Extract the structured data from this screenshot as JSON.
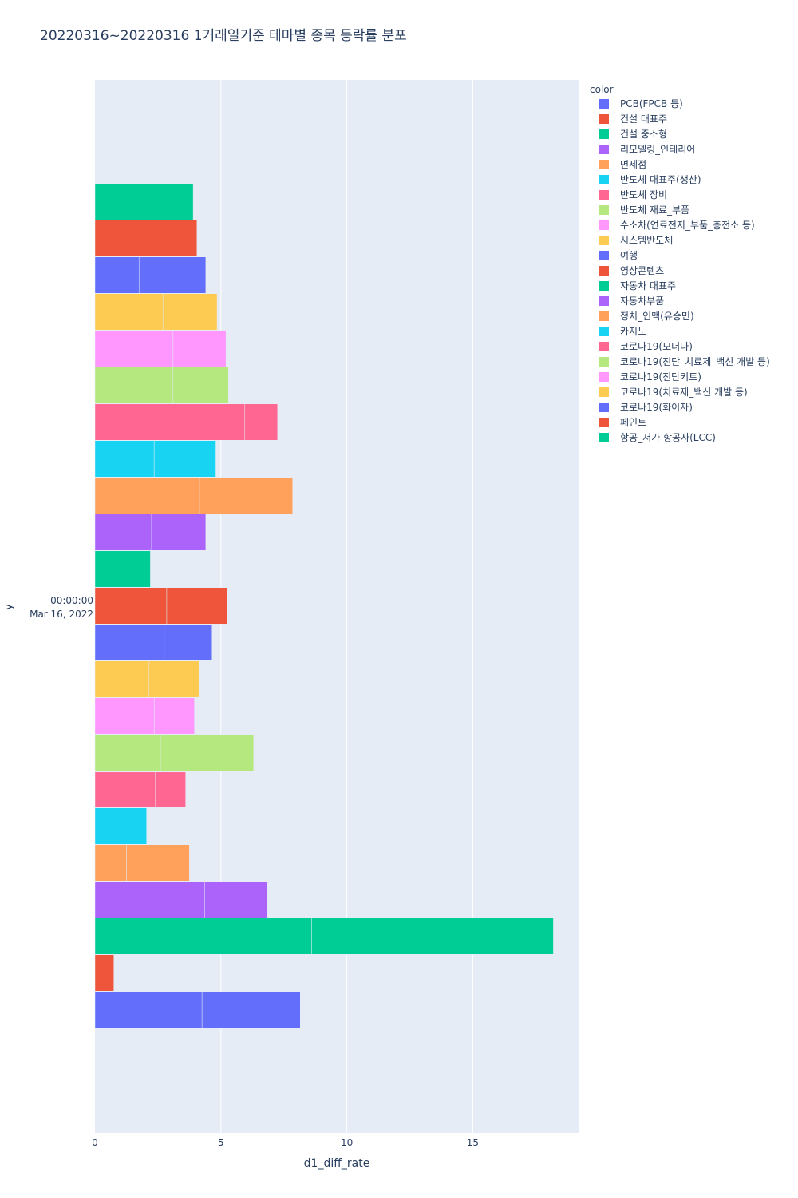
{
  "chart_data": {
    "type": "bar",
    "orientation": "horizontal",
    "barmode": "relative",
    "title": "20220316~20220316 1거래일기준 테마별 종목 등락률 분포",
    "xlabel": "d1_diff_rate",
    "ylabel": "y",
    "y_tick_label_time": "00:00:00",
    "y_tick_label_date": "Mar 16, 2022",
    "xlim": [
      0,
      19.2
    ],
    "x_ticks": [
      0,
      5,
      10,
      15
    ],
    "x_tick_labels": [
      "0",
      "5",
      "10",
      "15"
    ],
    "legend_title": "color",
    "legend_position": "right",
    "grid": true,
    "series": [
      {
        "name": "PCB(FPCB 등)",
        "color": "#636efa",
        "segments": [
          4.25,
          3.9
        ]
      },
      {
        "name": "건설 대표주",
        "color": "#EF553B",
        "segments": [
          0.75
        ]
      },
      {
        "name": "건설 중소형",
        "color": "#00cc96",
        "segments": [
          8.6,
          9.6
        ]
      },
      {
        "name": "리모델링_인테리어",
        "color": "#ab63fa",
        "segments": [
          4.35,
          2.5
        ]
      },
      {
        "name": "면세점",
        "color": "#FFA15A",
        "segments": [
          1.25,
          2.5
        ]
      },
      {
        "name": "반도체 대표주(생산)",
        "color": "#19d3f3",
        "segments": [
          2.05
        ]
      },
      {
        "name": "반도체 장비",
        "color": "#FF6692",
        "segments": [
          2.4,
          1.2
        ]
      },
      {
        "name": "반도체 재료_부품",
        "color": "#B6E880",
        "segments": [
          2.6,
          3.7
        ]
      },
      {
        "name": "수소차(연료전지_부품_충전소 등)",
        "color": "#FF97FF",
        "segments": [
          2.35,
          1.6
        ]
      },
      {
        "name": "시스템반도체",
        "color": "#FECB52",
        "segments": [
          2.15,
          2.0
        ]
      },
      {
        "name": "여행",
        "color": "#636efa",
        "segments": [
          2.75,
          1.9
        ]
      },
      {
        "name": "영상콘텐츠",
        "color": "#EF553B",
        "segments": [
          2.85,
          2.4
        ]
      },
      {
        "name": "자동차 대표주",
        "color": "#00cc96",
        "segments": [
          2.2
        ]
      },
      {
        "name": "자동차부품",
        "color": "#ab63fa",
        "segments": [
          2.25,
          2.15
        ]
      },
      {
        "name": "정치_인맥(유승민)",
        "color": "#FFA15A",
        "segments": [
          4.15,
          3.7
        ]
      },
      {
        "name": "카지노",
        "color": "#19d3f3",
        "segments": [
          2.35,
          2.45
        ]
      },
      {
        "name": "코로나19(모더나)",
        "color": "#FF6692",
        "segments": [
          5.95,
          1.3
        ]
      },
      {
        "name": "코로나19(진단_치료제_백신 개발 등)",
        "color": "#B6E880",
        "segments": [
          3.1,
          2.2
        ]
      },
      {
        "name": "코로나19(진단키트)",
        "color": "#FF97FF",
        "segments": [
          3.1,
          2.1
        ]
      },
      {
        "name": "코로나19(치료제_백신 개발 등)",
        "color": "#FECB52",
        "segments": [
          2.7,
          2.15
        ]
      },
      {
        "name": "코로나19(화이자)",
        "color": "#636efa",
        "segments": [
          1.75,
          2.65
        ]
      },
      {
        "name": "페인트",
        "color": "#EF553B",
        "segments": [
          4.05
        ]
      },
      {
        "name": "항공_저가 항공사(LCC)",
        "color": "#00cc96",
        "segments": [
          3.9
        ]
      }
    ]
  }
}
